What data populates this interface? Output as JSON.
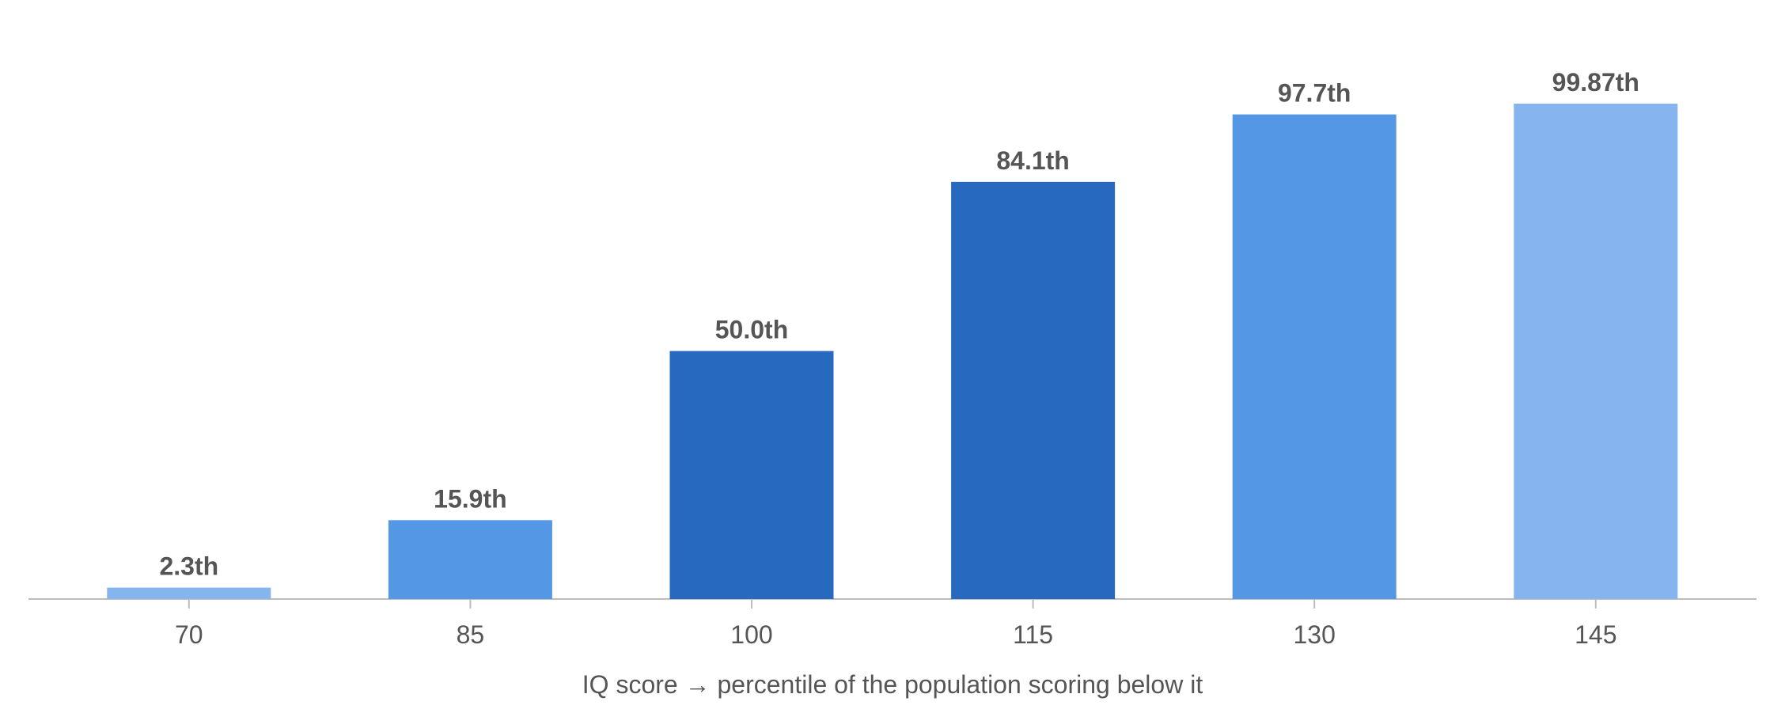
{
  "chart_data": {
    "type": "bar",
    "categories": [
      "70",
      "85",
      "100",
      "115",
      "130",
      "145"
    ],
    "values": [
      2.3,
      15.9,
      50.0,
      84.1,
      97.7,
      99.87
    ],
    "value_labels": [
      "2.3th",
      "15.9th",
      "50.0th",
      "84.1th",
      "97.7th",
      "99.87th"
    ],
    "colors": [
      "#85b4ee",
      "#5497e5",
      "#2869c0",
      "#2869c0",
      "#5497e5",
      "#85b4ee"
    ],
    "x_label": "IQ score → percentile of the population scoring below it"
  }
}
